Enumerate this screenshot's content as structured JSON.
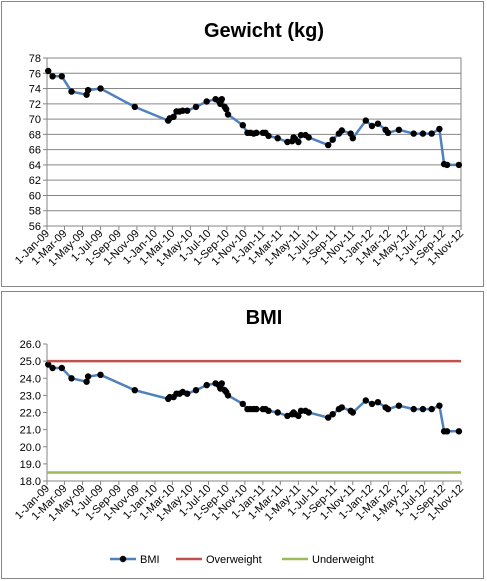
{
  "chart_data": [
    {
      "type": "line",
      "title": "Gewicht (kg)",
      "xlabel": "",
      "ylabel": "",
      "ylim": [
        56,
        78
      ],
      "y_ticks": [
        "78",
        "76",
        "74",
        "72",
        "70",
        "68",
        "66",
        "64",
        "62",
        "60",
        "58",
        "56"
      ],
      "x_ticks": [
        "1-Jan-09",
        "1-Mar-09",
        "1-May-09",
        "1-Jul-09",
        "1-Sep-09",
        "1-Nov-09",
        "1-Jan-10",
        "1-Mar-10",
        "1-May-10",
        "1-Jul-10",
        "1-Sep-10",
        "1-Nov-10",
        "1-Jan-11",
        "1-Mar-11",
        "1-May-11",
        "1-Jul-11",
        "1-Sep-11",
        "1-Nov-11",
        "1-Jan-12",
        "1-Mar-12",
        "1-May-12",
        "1-Jul-12",
        "1-Sep-12",
        "1-Nov-12"
      ],
      "grid": true,
      "legend": "none",
      "series": [
        {
          "color": "#4f81bd",
          "x": [
            "2009-01-05",
            "2009-01-20",
            "2009-02-20",
            "2009-03-25",
            "2009-05-15",
            "2009-05-20",
            "2009-07-01",
            "2009-10-25",
            "2010-02-15",
            "2010-02-20",
            "2010-03-05",
            "2010-03-15",
            "2010-03-25",
            "2010-04-05",
            "2010-04-20",
            "2010-05-20",
            "2010-06-25",
            "2010-07-25",
            "2010-08-05",
            "2010-08-10",
            "2010-08-15",
            "2010-08-25",
            "2010-08-30",
            "2010-09-05",
            "2010-10-25",
            "2010-11-10",
            "2010-11-20",
            "2010-12-01",
            "2010-12-10",
            "2011-01-01",
            "2011-01-10",
            "2011-01-20",
            "2011-02-20",
            "2011-03-25",
            "2011-04-10",
            "2011-04-15",
            "2011-04-20",
            "2011-05-01",
            "2011-05-10",
            "2011-05-25",
            "2011-06-05",
            "2011-08-10",
            "2011-08-25",
            "2011-09-15",
            "2011-09-25",
            "2011-10-25",
            "2011-11-01",
            "2011-12-15",
            "2012-01-05",
            "2012-01-25",
            "2012-02-20",
            "2012-02-28",
            "2012-04-05",
            "2012-05-25",
            "2012-06-25",
            "2012-07-25",
            "2012-08-20",
            "2012-09-05",
            "2012-09-15",
            "2012-10-25"
          ],
          "values": [
            76.3,
            75.6,
            75.6,
            73.6,
            73.2,
            73.8,
            74.0,
            71.6,
            69.8,
            70.1,
            70.3,
            71.0,
            71.0,
            71.1,
            71.1,
            71.6,
            72.3,
            72.6,
            72.4,
            72.0,
            72.6,
            71.6,
            71.3,
            70.6,
            69.2,
            68.2,
            68.2,
            68.1,
            68.2,
            68.2,
            68.2,
            67.8,
            67.5,
            67.0,
            67.1,
            67.6,
            67.4,
            67.0,
            67.9,
            67.9,
            67.6,
            66.6,
            67.3,
            68.1,
            68.5,
            68.1,
            67.5,
            69.8,
            69.1,
            69.4,
            68.6,
            68.2,
            68.6,
            68.1,
            68.1,
            68.1,
            68.7,
            64.1,
            64.0,
            64.0
          ]
        }
      ]
    },
    {
      "type": "line",
      "title": "BMI",
      "xlabel": "",
      "ylabel": "",
      "ylim": [
        18.0,
        26.0
      ],
      "y_ticks": [
        "26.0",
        "25.0",
        "24.0",
        "23.0",
        "22.0",
        "21.0",
        "20.0",
        "19.0",
        "18.0"
      ],
      "x_ticks": [
        "1-Jan-09",
        "1-Mar-09",
        "1-May-09",
        "1-Jul-09",
        "1-Sep-09",
        "1-Nov-09",
        "1-Jan-10",
        "1-Mar-10",
        "1-May-10",
        "1-Jul-10",
        "1-Sep-10",
        "1-Nov-10",
        "1-Jan-11",
        "1-Mar-11",
        "1-May-11",
        "1-Jul-11",
        "1-Sep-11",
        "1-Nov-11",
        "1-Jan-12",
        "1-Mar-12",
        "1-May-12",
        "1-Jul-12",
        "1-Sep-12",
        "1-Nov-12"
      ],
      "grid": false,
      "legend": "bottom",
      "series": [
        {
          "name": "BMI",
          "color": "#4f81bd",
          "x": [
            "2009-01-05",
            "2009-01-20",
            "2009-02-20",
            "2009-03-25",
            "2009-05-15",
            "2009-05-20",
            "2009-07-01",
            "2009-10-25",
            "2010-02-15",
            "2010-02-20",
            "2010-03-05",
            "2010-03-15",
            "2010-03-25",
            "2010-04-05",
            "2010-04-20",
            "2010-05-20",
            "2010-06-25",
            "2010-07-25",
            "2010-08-05",
            "2010-08-10",
            "2010-08-15",
            "2010-08-25",
            "2010-08-30",
            "2010-09-05",
            "2010-10-25",
            "2010-11-10",
            "2010-11-20",
            "2010-12-01",
            "2010-12-10",
            "2011-01-01",
            "2011-01-10",
            "2011-01-20",
            "2011-02-20",
            "2011-03-25",
            "2011-04-10",
            "2011-04-15",
            "2011-04-20",
            "2011-05-01",
            "2011-05-10",
            "2011-05-25",
            "2011-06-05",
            "2011-08-10",
            "2011-08-25",
            "2011-09-15",
            "2011-09-25",
            "2011-10-25",
            "2011-11-01",
            "2011-12-15",
            "2012-01-05",
            "2012-01-25",
            "2012-02-20",
            "2012-02-28",
            "2012-04-05",
            "2012-05-25",
            "2012-06-25",
            "2012-07-25",
            "2012-08-20",
            "2012-09-05",
            "2012-09-15",
            "2012-10-25"
          ],
          "values": [
            24.8,
            24.6,
            24.6,
            24.0,
            23.8,
            24.1,
            24.2,
            23.3,
            22.8,
            22.9,
            22.9,
            23.1,
            23.1,
            23.2,
            23.1,
            23.3,
            23.6,
            23.7,
            23.6,
            23.4,
            23.7,
            23.3,
            23.2,
            23.0,
            22.5,
            22.2,
            22.2,
            22.2,
            22.2,
            22.2,
            22.2,
            22.1,
            22.0,
            21.8,
            21.9,
            22.0,
            21.9,
            21.8,
            22.1,
            22.1,
            22.0,
            21.7,
            21.9,
            22.2,
            22.3,
            22.1,
            22.0,
            22.7,
            22.5,
            22.6,
            22.3,
            22.2,
            22.4,
            22.2,
            22.2,
            22.2,
            22.4,
            20.9,
            20.9,
            20.9
          ]
        },
        {
          "name": "Overweight",
          "color": "#c0504d",
          "constant": 25.0
        },
        {
          "name": "Underweight",
          "color": "#9bbb59",
          "constant": 18.5
        }
      ]
    }
  ]
}
